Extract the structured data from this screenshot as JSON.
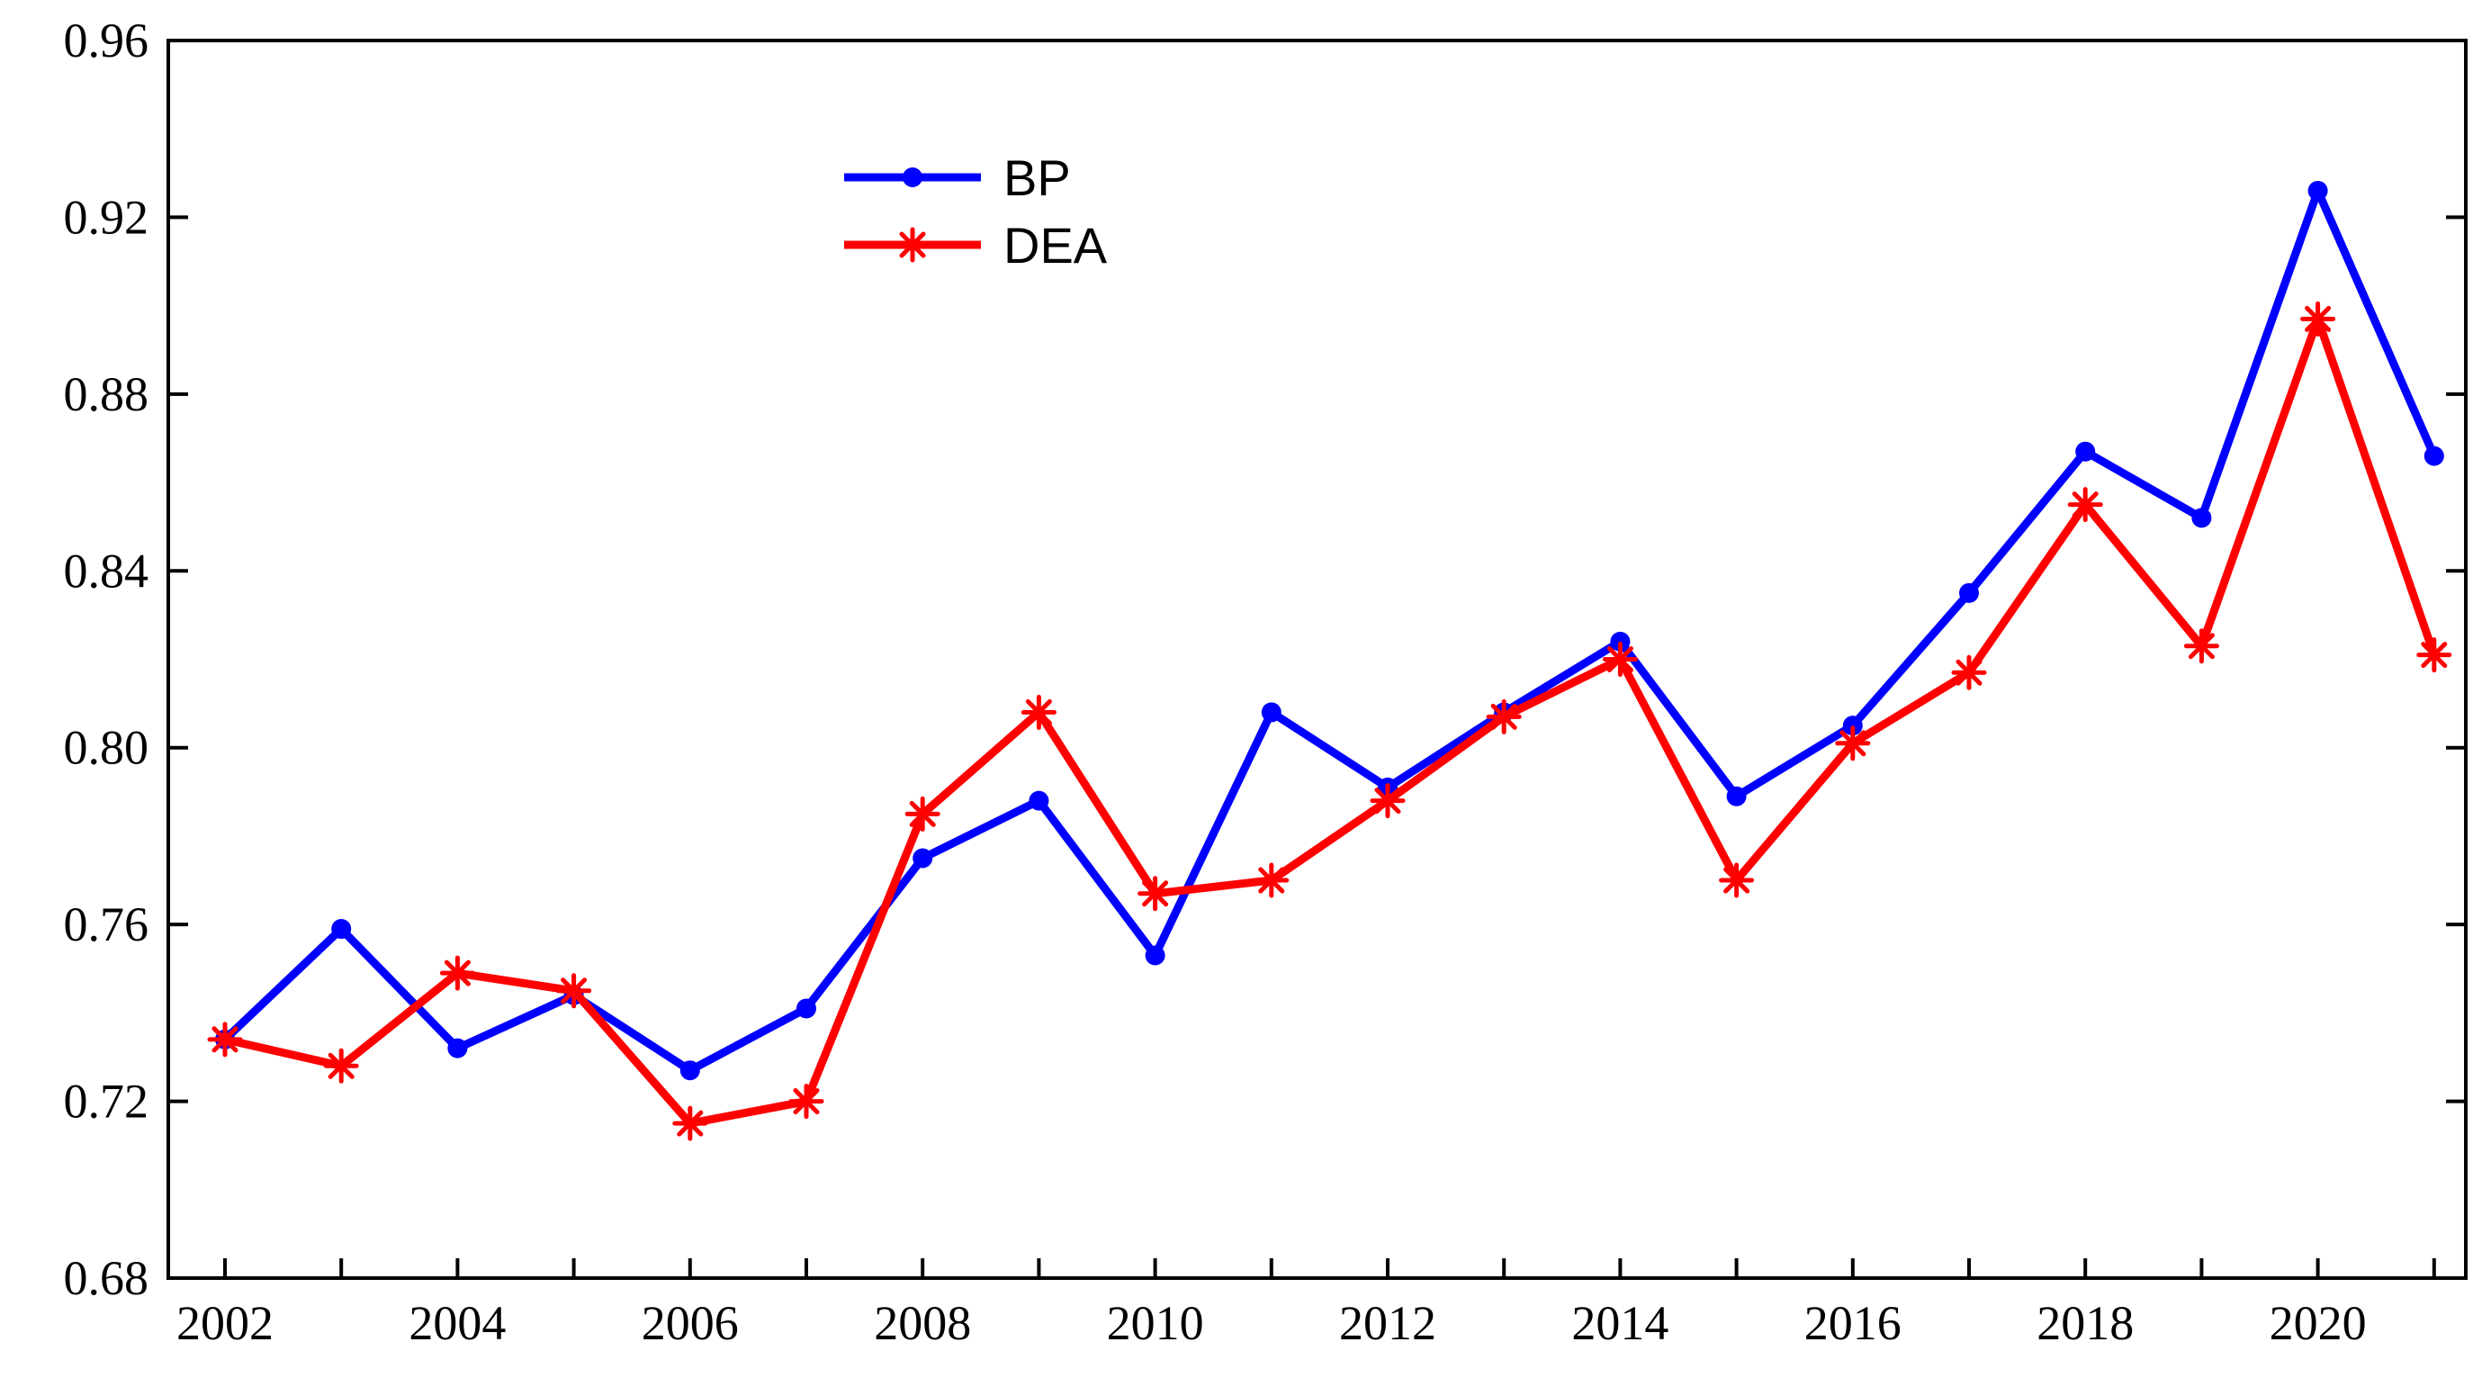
{
  "chart_data": {
    "type": "line",
    "title": "",
    "xlabel": "",
    "ylabel": "",
    "x": [
      2002,
      2003,
      2004,
      2005,
      2006,
      2007,
      2008,
      2009,
      2010,
      2011,
      2012,
      2013,
      2014,
      2015,
      2016,
      2017,
      2018,
      2019,
      2020,
      2021
    ],
    "x_tick_labels": [
      "2002",
      "2004",
      "2006",
      "2008",
      "2010",
      "2012",
      "2014",
      "2016",
      "2018",
      "2020"
    ],
    "y_tick_labels": [
      "0.68",
      "0.72",
      "0.76",
      "0.80",
      "0.84",
      "0.88",
      "0.92",
      "0.96"
    ],
    "ylim": [
      0.68,
      0.96
    ],
    "grid": false,
    "legend_position": "top-center",
    "series": [
      {
        "name": "BP",
        "color": "#0000ff",
        "marker": "circle",
        "values": [
          0.734,
          0.759,
          0.732,
          0.744,
          0.727,
          0.741,
          0.775,
          0.788,
          0.753,
          0.808,
          0.791,
          0.808,
          0.824,
          0.789,
          0.805,
          0.835,
          0.867,
          0.852,
          0.926,
          0.866
        ]
      },
      {
        "name": "DEA",
        "color": "#ff0000",
        "marker": "asterisk",
        "values": [
          0.734,
          0.728,
          0.749,
          0.745,
          0.715,
          0.72,
          0.785,
          0.808,
          0.767,
          0.77,
          0.788,
          0.807,
          0.82,
          0.77,
          0.801,
          0.817,
          0.855,
          0.823,
          0.897,
          0.821
        ]
      }
    ]
  }
}
